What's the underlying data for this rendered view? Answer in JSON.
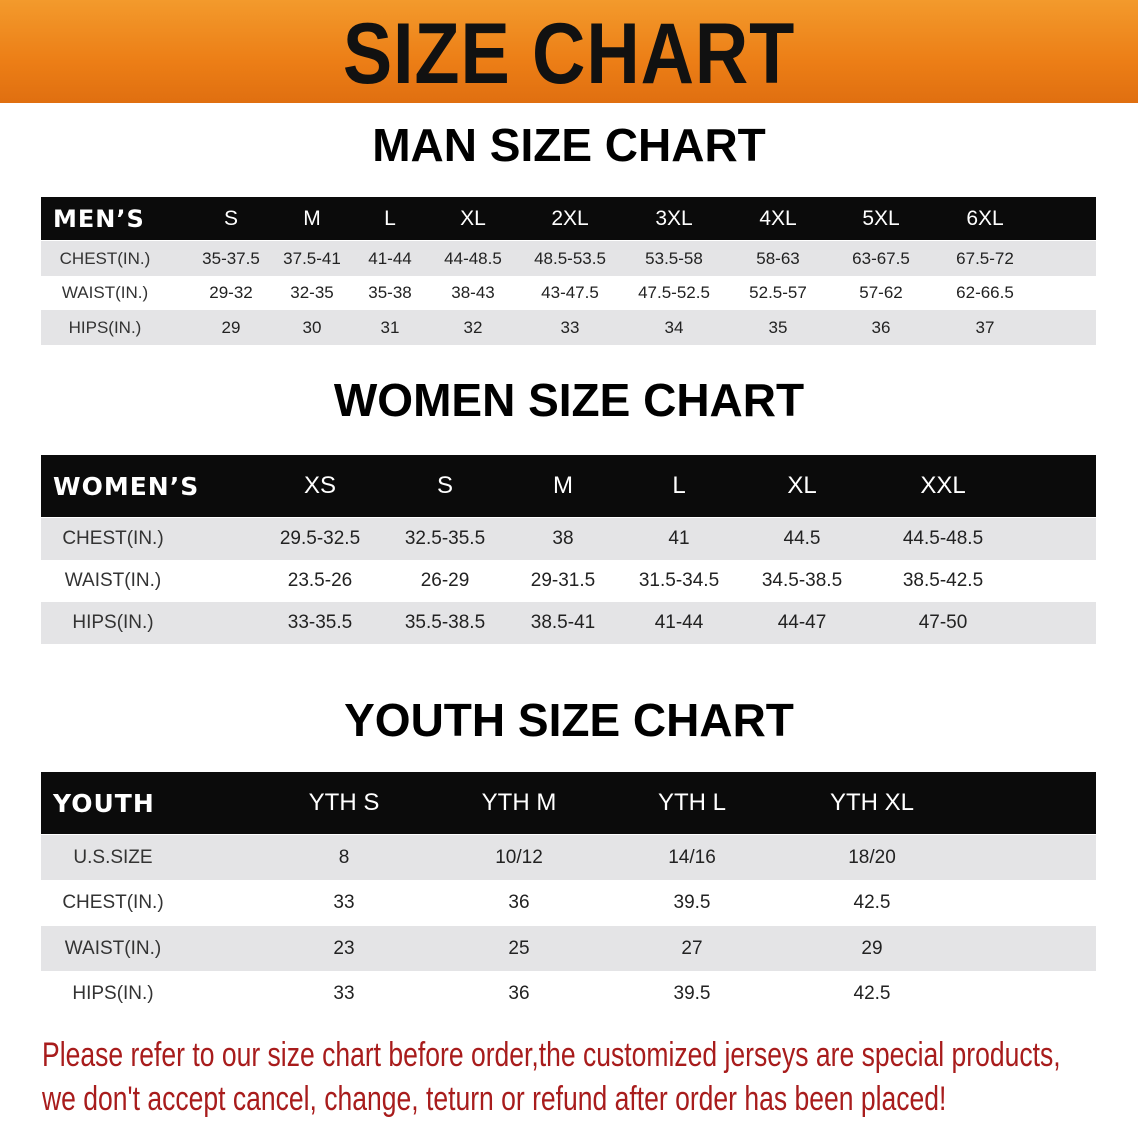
{
  "banner": {
    "title": "SIZE CHART",
    "color": "#ec7e16"
  },
  "men": {
    "title": "MAN SIZE CHART",
    "header_label": "MEN’S",
    "sizes": [
      "S",
      "M",
      "L",
      "XL",
      "2XL",
      "3XL",
      "4XL",
      "5XL",
      "6XL"
    ],
    "rows": [
      {
        "label": "CHEST(IN.)",
        "values": [
          "35-37.5",
          "37.5-41",
          "41-44",
          "44-48.5",
          "48.5-53.5",
          "53.5-58",
          "58-63",
          "63-67.5",
          "67.5-72"
        ]
      },
      {
        "label": "WAIST(IN.)",
        "values": [
          "29-32",
          "32-35",
          "35-38",
          "38-43",
          "43-47.5",
          "47.5-52.5",
          "52.5-57",
          "57-62",
          "62-66.5"
        ]
      },
      {
        "label": "HIPS(IN.)",
        "values": [
          "29",
          "30",
          "31",
          "32",
          "33",
          "34",
          "35",
          "36",
          "37"
        ]
      }
    ]
  },
  "women": {
    "title": "WOMEN SIZE CHART",
    "header_label": "WOMEN’S",
    "sizes": [
      "XS",
      "S",
      "M",
      "L",
      "XL",
      "XXL"
    ],
    "rows": [
      {
        "label": "CHEST(IN.)",
        "values": [
          "29.5-32.5",
          "32.5-35.5",
          "38",
          "41",
          "44.5",
          "44.5-48.5"
        ]
      },
      {
        "label": "WAIST(IN.)",
        "values": [
          "23.5-26",
          "26-29",
          "29-31.5",
          "31.5-34.5",
          "34.5-38.5",
          "38.5-42.5"
        ]
      },
      {
        "label": "HIPS(IN.)",
        "values": [
          "33-35.5",
          "35.5-38.5",
          "38.5-41",
          "41-44",
          "44-47",
          "47-50"
        ]
      }
    ]
  },
  "youth": {
    "title": "YOUTH SIZE CHART",
    "header_label": "YOUTH",
    "sizes": [
      "YTH S",
      "YTH M",
      "YTH L",
      "YTH XL"
    ],
    "rows": [
      {
        "label": "U.S.SIZE",
        "values": [
          "8",
          "10/12",
          "14/16",
          "18/20"
        ]
      },
      {
        "label": "CHEST(IN.)",
        "values": [
          "33",
          "36",
          "39.5",
          "42.5"
        ]
      },
      {
        "label": "WAIST(IN.)",
        "values": [
          "23",
          "25",
          "27",
          "29"
        ]
      },
      {
        "label": "HIPS(IN.)",
        "values": [
          "33",
          "36",
          "39.5",
          "42.5"
        ]
      }
    ]
  },
  "notice": {
    "line1": "Please refer to our size chart before order,the customized jerseys are special products,",
    "line2": "we don't accept cancel, change, teturn or refund after order has been placed!",
    "color": "#a81c1c"
  }
}
